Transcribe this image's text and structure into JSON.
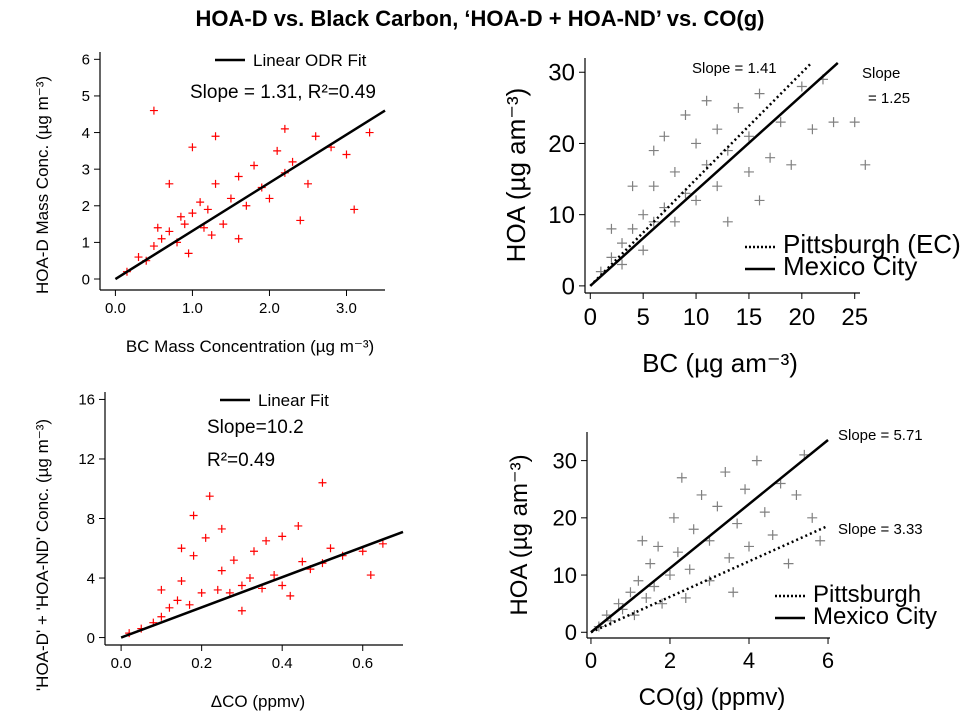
{
  "page": {
    "title": "HOA-D vs. Black Carbon, ‘HOA-D + HOA-ND’ vs. CO(g)"
  },
  "chart_data": [
    {
      "id": "tl",
      "type": "scatter",
      "xlabel": "BC Mass Concentration (µg m⁻³)",
      "ylabel": "HOA-D Mass Conc. (µg m⁻³)",
      "xlim": [
        -0.2,
        3.5
      ],
      "ylim": [
        -0.3,
        6.2
      ],
      "xticks": [
        0.0,
        1.0,
        2.0,
        3.0
      ],
      "xtick_labels": [
        "0.0",
        "1.0",
        "2.0",
        "3.0"
      ],
      "yticks": [
        0,
        1,
        2,
        3,
        4,
        5,
        6
      ],
      "ytick_labels": [
        "0",
        "1",
        "2",
        "3",
        "4",
        "5",
        "6"
      ],
      "grid": false,
      "legend": {
        "position": "top-right",
        "entries": [
          {
            "label": "Linear ODR Fit",
            "style": "solid"
          }
        ]
      },
      "annotations": [
        "Slope = 1.31, R²=0.49"
      ],
      "colors": {
        "points": "#ff0000",
        "fit": "#000000"
      },
      "series": [
        {
          "name": "Linear ODR Fit",
          "kind": "line",
          "style": "solid",
          "x": [
            0.0,
            3.5
          ],
          "y": [
            0.0,
            4.6
          ]
        }
      ],
      "scatter_points": [
        [
          0.15,
          0.2
        ],
        [
          0.3,
          0.6
        ],
        [
          0.4,
          0.5
        ],
        [
          0.5,
          0.9
        ],
        [
          0.55,
          1.4
        ],
        [
          0.6,
          1.1
        ],
        [
          0.7,
          1.3
        ],
        [
          0.8,
          1.0
        ],
        [
          0.85,
          1.7
        ],
        [
          0.9,
          1.5
        ],
        [
          1.0,
          1.8
        ],
        [
          1.1,
          2.1
        ],
        [
          1.15,
          1.4
        ],
        [
          1.2,
          1.9
        ],
        [
          1.3,
          2.6
        ],
        [
          1.4,
          1.5
        ],
        [
          1.5,
          2.2
        ],
        [
          1.6,
          2.8
        ],
        [
          1.7,
          2.0
        ],
        [
          1.8,
          3.1
        ],
        [
          1.9,
          2.5
        ],
        [
          2.0,
          2.2
        ],
        [
          2.1,
          3.5
        ],
        [
          2.2,
          2.9
        ],
        [
          2.3,
          3.2
        ],
        [
          2.5,
          2.6
        ],
        [
          2.6,
          3.9
        ],
        [
          2.8,
          3.6
        ],
        [
          3.0,
          3.4
        ],
        [
          3.1,
          1.9
        ],
        [
          3.3,
          4.0
        ],
        [
          0.5,
          4.6
        ],
        [
          1.0,
          3.6
        ],
        [
          1.3,
          3.9
        ],
        [
          0.7,
          2.6
        ],
        [
          2.2,
          4.1
        ],
        [
          1.6,
          1.1
        ],
        [
          2.4,
          1.6
        ],
        [
          0.95,
          0.7
        ],
        [
          1.25,
          1.2
        ]
      ]
    },
    {
      "id": "tr",
      "type": "scatter",
      "xlabel": "BC (µg am⁻³)",
      "ylabel": "HOA (µg am⁻³)",
      "xlim": [
        -0.5,
        25.5
      ],
      "ylim": [
        -1,
        32
      ],
      "xticks": [
        0,
        5,
        10,
        15,
        20,
        25
      ],
      "xtick_labels": [
        "0",
        "5",
        "10",
        "15",
        "20",
        "25"
      ],
      "yticks": [
        0,
        10,
        20,
        30
      ],
      "ytick_labels": [
        "0",
        "10",
        "20",
        "30"
      ],
      "grid": false,
      "legend": {
        "position": "bottom-right",
        "entries": [
          {
            "label": "Pittsburgh (EC)",
            "style": "dotted"
          },
          {
            "label": "Mexico City",
            "style": "solid"
          }
        ]
      },
      "annotations": [
        "Slope = 1.41",
        "Slope",
        "= 1.25"
      ],
      "colors": {
        "points": "#808080",
        "fit": "#000000"
      },
      "series": [
        {
          "name": "Pittsburgh (EC)",
          "kind": "line",
          "style": "dotted",
          "x": [
            0,
            20.9
          ],
          "y": [
            0,
            31.3
          ]
        },
        {
          "name": "Mexico City",
          "kind": "line",
          "style": "solid",
          "x": [
            0,
            23.4
          ],
          "y": [
            0,
            31.3
          ]
        }
      ],
      "scatter_points": [
        [
          1,
          2
        ],
        [
          2,
          4
        ],
        [
          3,
          6
        ],
        [
          3,
          3
        ],
        [
          4,
          8
        ],
        [
          5,
          5
        ],
        [
          5,
          10
        ],
        [
          6,
          9
        ],
        [
          6,
          14
        ],
        [
          7,
          11
        ],
        [
          8,
          9
        ],
        [
          8,
          16
        ],
        [
          9,
          13
        ],
        [
          10,
          20
        ],
        [
          10,
          12
        ],
        [
          11,
          17
        ],
        [
          12,
          22
        ],
        [
          12,
          14
        ],
        [
          13,
          19
        ],
        [
          14,
          25
        ],
        [
          15,
          16
        ],
        [
          15,
          21
        ],
        [
          16,
          27
        ],
        [
          17,
          18
        ],
        [
          18,
          23
        ],
        [
          19,
          17
        ],
        [
          20,
          28
        ],
        [
          21,
          22
        ],
        [
          22,
          29
        ],
        [
          23,
          23
        ],
        [
          25,
          23
        ],
        [
          26,
          17
        ],
        [
          7,
          21
        ],
        [
          9,
          24
        ],
        [
          11,
          26
        ],
        [
          4,
          14
        ],
        [
          6,
          19
        ],
        [
          13,
          9
        ],
        [
          16,
          12
        ],
        [
          2,
          8
        ]
      ]
    },
    {
      "id": "bl",
      "type": "scatter",
      "xlabel": "ΔCO (ppmv)",
      "ylabel": "'HOA-D' + 'HOA-ND' Conc. (µg m⁻³)",
      "xlim": [
        -0.04,
        0.7
      ],
      "ylim": [
        -0.5,
        16.5
      ],
      "xticks": [
        0.0,
        0.2,
        0.4,
        0.6
      ],
      "xtick_labels": [
        "0.0",
        "0.2",
        "0.4",
        "0.6"
      ],
      "yticks": [
        0,
        4,
        8,
        12,
        16
      ],
      "ytick_labels": [
        "0",
        "4",
        "8",
        "12",
        "16"
      ],
      "grid": false,
      "legend": {
        "position": "top-right",
        "entries": [
          {
            "label": "Linear Fit",
            "style": "solid"
          }
        ]
      },
      "annotations": [
        "Slope=10.2",
        "R²=0.49"
      ],
      "colors": {
        "points": "#ff0000",
        "fit": "#000000"
      },
      "series": [
        {
          "name": "Linear Fit",
          "kind": "line",
          "style": "solid",
          "x": [
            0.0,
            0.7
          ],
          "y": [
            0.0,
            7.1
          ]
        }
      ],
      "scatter_points": [
        [
          0.02,
          0.3
        ],
        [
          0.05,
          0.6
        ],
        [
          0.08,
          1.0
        ],
        [
          0.1,
          1.4
        ],
        [
          0.12,
          2.0
        ],
        [
          0.14,
          2.5
        ],
        [
          0.15,
          3.8
        ],
        [
          0.17,
          2.2
        ],
        [
          0.18,
          5.5
        ],
        [
          0.2,
          3.0
        ],
        [
          0.21,
          6.7
        ],
        [
          0.22,
          9.5
        ],
        [
          0.24,
          3.2
        ],
        [
          0.25,
          4.5
        ],
        [
          0.27,
          3.0
        ],
        [
          0.28,
          5.2
        ],
        [
          0.3,
          3.5
        ],
        [
          0.32,
          4.0
        ],
        [
          0.33,
          5.8
        ],
        [
          0.35,
          3.3
        ],
        [
          0.36,
          6.5
        ],
        [
          0.38,
          4.2
        ],
        [
          0.4,
          3.5
        ],
        [
          0.42,
          2.8
        ],
        [
          0.45,
          5.1
        ],
        [
          0.47,
          4.6
        ],
        [
          0.5,
          5.0
        ],
        [
          0.5,
          10.4
        ],
        [
          0.52,
          6.0
        ],
        [
          0.55,
          5.5
        ],
        [
          0.6,
          5.8
        ],
        [
          0.62,
          4.2
        ],
        [
          0.65,
          6.3
        ],
        [
          0.18,
          8.2
        ],
        [
          0.1,
          3.2
        ],
        [
          0.3,
          1.8
        ],
        [
          0.25,
          7.3
        ],
        [
          0.15,
          6.0
        ],
        [
          0.4,
          6.8
        ],
        [
          0.44,
          7.5
        ]
      ]
    },
    {
      "id": "br",
      "type": "scatter",
      "xlabel": "CO(g) (ppmv)",
      "ylabel": "HOA (µg am⁻³)",
      "xlim": [
        -0.1,
        6.05
      ],
      "ylim": [
        -1,
        35
      ],
      "xticks": [
        0,
        2,
        4,
        6
      ],
      "xtick_labels": [
        "0",
        "2",
        "4",
        "6"
      ],
      "yticks": [
        0,
        10,
        20,
        30
      ],
      "ytick_labels": [
        "0",
        "10",
        "20",
        "30"
      ],
      "grid": false,
      "legend": {
        "position": "bottom-right",
        "entries": [
          {
            "label": "Pittsburgh",
            "style": "dotted"
          },
          {
            "label": "Mexico City",
            "style": "solid"
          }
        ]
      },
      "annotations": [
        "Slope = 5.71",
        "Slope = 3.33"
      ],
      "colors": {
        "points": "#808080",
        "fit": "#000000"
      },
      "series": [
        {
          "name": "Pittsburgh",
          "kind": "line",
          "style": "dotted",
          "x": [
            0,
            6.0
          ],
          "y": [
            0,
            18.6
          ]
        },
        {
          "name": "Mexico City",
          "kind": "line",
          "style": "solid",
          "x": [
            0,
            6.0
          ],
          "y": [
            0,
            33.6
          ]
        }
      ],
      "scatter_points": [
        [
          0.2,
          1
        ],
        [
          0.4,
          3
        ],
        [
          0.5,
          2
        ],
        [
          0.7,
          5
        ],
        [
          0.8,
          4
        ],
        [
          1.0,
          7
        ],
        [
          1.1,
          3
        ],
        [
          1.2,
          9
        ],
        [
          1.4,
          6
        ],
        [
          1.5,
          12
        ],
        [
          1.6,
          8
        ],
        [
          1.7,
          15
        ],
        [
          1.8,
          5
        ],
        [
          2.0,
          10
        ],
        [
          2.1,
          20
        ],
        [
          2.2,
          14
        ],
        [
          2.3,
          27
        ],
        [
          2.5,
          11
        ],
        [
          2.6,
          18
        ],
        [
          2.8,
          24
        ],
        [
          3.0,
          9
        ],
        [
          3.0,
          16
        ],
        [
          3.2,
          22
        ],
        [
          3.4,
          28
        ],
        [
          3.5,
          13
        ],
        [
          3.7,
          19
        ],
        [
          3.9,
          25
        ],
        [
          4.0,
          15
        ],
        [
          4.2,
          30
        ],
        [
          4.4,
          21
        ],
        [
          4.6,
          17
        ],
        [
          4.8,
          26
        ],
        [
          5.0,
          12
        ],
        [
          5.2,
          24
        ],
        [
          5.4,
          31
        ],
        [
          5.6,
          20
        ],
        [
          5.8,
          16
        ],
        [
          1.3,
          16
        ],
        [
          2.4,
          6
        ],
        [
          3.6,
          7
        ]
      ]
    }
  ]
}
